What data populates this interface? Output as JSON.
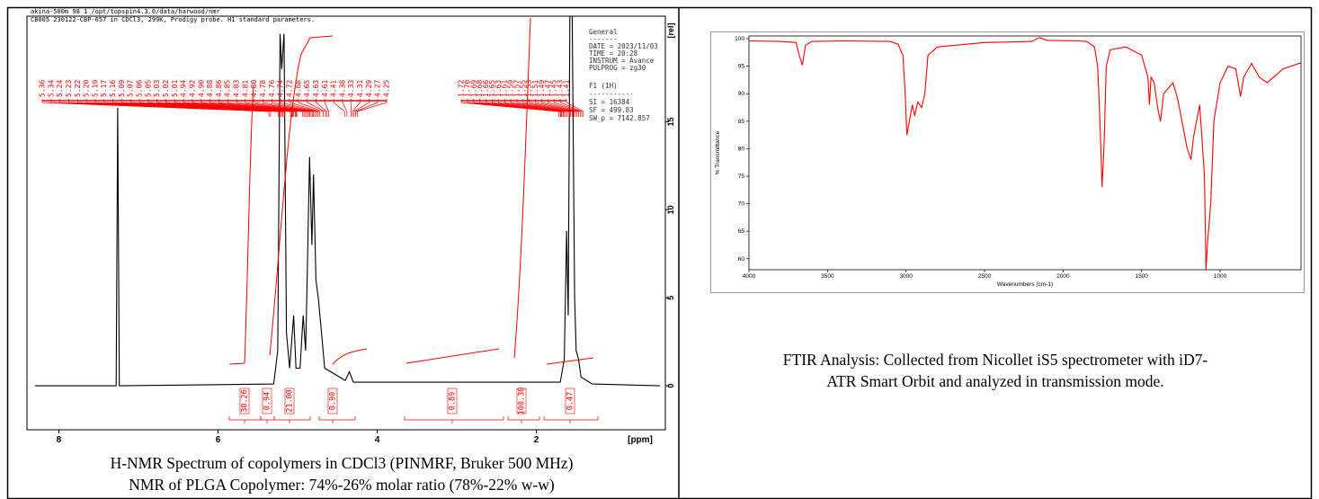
{
  "chart_data": [
    {
      "type": "line",
      "header": [
        "akina-500m  98  1  /opt/topspin4.3.0/data/harwood/nmr",
        "CB005 230122-CBP-657 in CDCl3, 299K, Prodigy probe.  H1 standard parameters."
      ],
      "info_general": [
        "General",
        "-------",
        "DATE = 2023/11/03",
        "TIME = 20:28",
        "INSTRUM = Avance",
        "PULPROG = zg30"
      ],
      "info_f1": [
        "F1 (1H)",
        "-----------",
        "SI =   16384",
        "SF =   499.83",
        "SW_p =   7142.857"
      ],
      "xlabel": "[ppm]",
      "ylabel": "[rel]",
      "x": [
        8.3,
        7.28,
        7.26,
        7.24,
        5.3,
        5.25,
        5.22,
        5.2,
        5.17,
        5.14,
        5.1,
        5.05,
        5.02,
        4.97,
        4.93,
        4.9,
        4.88,
        4.85,
        4.82,
        4.8,
        4.77,
        4.74,
        4.7,
        4.66,
        4.4,
        4.35,
        4.3,
        1.7,
        1.65,
        1.62,
        1.6,
        1.58,
        1.55,
        1.52,
        1.5,
        1.47,
        1.44,
        1.3,
        0.45
      ],
      "values": [
        0,
        0,
        15.8,
        0,
        0.1,
        2,
        20,
        18,
        20,
        3,
        1,
        4,
        1,
        1,
        4,
        2,
        6,
        13,
        8,
        12,
        6,
        5,
        3,
        1,
        0.3,
        0.8,
        0.2,
        0.2,
        1.5,
        8.8,
        4,
        21,
        21,
        5,
        2,
        1.5,
        0.5,
        0.1,
        0
      ],
      "color": "#000000",
      "annotation_color": "#ff0000",
      "xlim": [
        8.4,
        0.38
      ],
      "ylim": [
        -2.5,
        21
      ],
      "xticks": [
        8,
        6,
        4,
        2
      ],
      "yticks": [
        0,
        5,
        10,
        15
      ],
      "peak_labels_left": [
        "5.36",
        "5.34",
        "5.24",
        "5.23",
        "5.22",
        "5.20",
        "5.19",
        "5.17",
        "5.16",
        "5.09",
        "5.07",
        "5.06",
        "5.05",
        "5.03",
        "5.02",
        "5.01",
        "4.94",
        "4.92",
        "4.90",
        "4.88",
        "4.86",
        "4.85",
        "4.83",
        "4.81",
        "4.80",
        "4.78",
        "4.76",
        "4.74",
        "4.72",
        "4.68",
        "4.65",
        "4.63",
        "4.61",
        "4.41",
        "4.38",
        "4.33",
        "4.31",
        "4.29",
        "4.27",
        "4.25"
      ],
      "peak_labels_right": [
        "1.72",
        "1.70",
        "1.69",
        "1.68",
        "1.66",
        "1.65",
        "1.63",
        "1.61",
        "1.59",
        "1.57",
        "1.55",
        "1.53",
        "1.51",
        "1.49",
        "1.47",
        "1.45",
        "1.43",
        "1.41"
      ],
      "integrals": [
        "30.26",
        "0.94",
        "21.00",
        "0.90",
        "0.89",
        "100.30",
        "0.47"
      ]
    },
    {
      "type": "line",
      "xlabel": "Wavenumbers (cm-1)",
      "ylabel": "% Transmittance",
      "x": [
        4000,
        3800,
        3700,
        3680,
        3660,
        3640,
        3600,
        3400,
        3100,
        3050,
        3020,
        3005,
        2995,
        2985,
        2960,
        2945,
        2925,
        2900,
        2880,
        2860,
        2800,
        2500,
        2200,
        2150,
        2100,
        1900,
        1850,
        1800,
        1780,
        1765,
        1752,
        1740,
        1725,
        1700,
        1600,
        1500,
        1460,
        1450,
        1440,
        1420,
        1395,
        1380,
        1360,
        1300,
        1270,
        1210,
        1185,
        1170,
        1130,
        1100,
        1090,
        1080,
        1060,
        1040,
        1000,
        950,
        900,
        870,
        850,
        800,
        750,
        700,
        600,
        500,
        485
      ],
      "values": [
        99.6,
        99.5,
        99.3,
        97,
        95.2,
        98.8,
        99.5,
        99.6,
        99.5,
        99,
        97,
        90,
        82.5,
        84,
        88,
        86,
        88.5,
        87.5,
        90,
        97,
        98.5,
        99.3,
        99.5,
        100.2,
        99.7,
        99.6,
        99.5,
        98.5,
        95,
        85,
        73,
        80,
        95,
        98,
        98.5,
        97,
        93,
        88,
        93,
        92,
        87,
        85,
        90,
        92,
        89,
        80,
        78,
        82,
        88,
        75,
        58,
        63,
        70,
        85,
        92,
        95,
        94.5,
        89.5,
        93,
        95.5,
        93,
        92,
        94.5,
        95.5,
        95.5
      ],
      "color": "#ff0000",
      "xlim": [
        4000,
        485
      ],
      "ylim": [
        58,
        100.5
      ],
      "xticks": [
        4000,
        3500,
        3000,
        2500,
        2000,
        1500,
        1000
      ],
      "yticks": [
        60,
        65,
        70,
        75,
        80,
        85,
        90,
        95,
        100
      ]
    }
  ],
  "captions": {
    "nmr": [
      "H-NMR Spectrum of copolymers in CDCl3 (PINMRF, Bruker 500 MHz)",
      "NMR of PLGA Copolymer: 74%-26%  molar ratio (78%-22% w-w)"
    ],
    "ftir": [
      "FTIR Analysis: Collected from Nicollet iS5 spectrometer with iD7-",
      "ATR Smart Orbit and analyzed in transmission mode."
    ]
  }
}
